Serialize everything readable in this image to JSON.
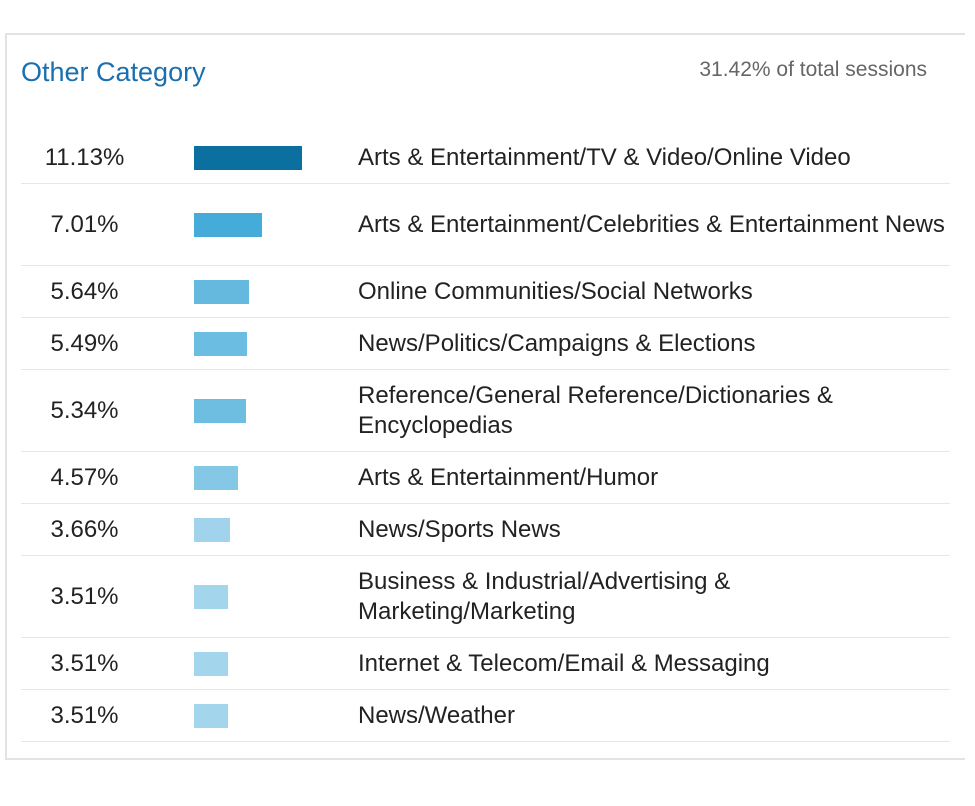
{
  "card": {
    "title": "Other Category",
    "subtitle": "31.42% of total sessions"
  },
  "chart_data": {
    "type": "bar",
    "orientation": "horizontal",
    "title": "Other Category",
    "subtitle": "31.42% of total sessions",
    "categories": [
      "Arts & Entertainment/TV & Video/Online Video",
      "Arts & Entertainment/Celebrities & Entertainment News",
      "Online Communities/Social Networks",
      "News/Politics/Campaigns & Elections",
      "Reference/General Reference/Dictionaries & Encyclopedias",
      "Arts & Entertainment/Humor",
      "News/Sports News",
      "Business & Industrial/Advertising & Marketing/Marketing",
      "Internet & Telecom/Email & Messaging",
      "News/Weather"
    ],
    "values": [
      11.13,
      7.01,
      5.64,
      5.49,
      5.34,
      4.57,
      3.66,
      3.51,
      3.51,
      3.51
    ],
    "value_labels": [
      "11.13%",
      "7.01%",
      "5.64%",
      "5.49%",
      "5.34%",
      "4.57%",
      "3.66%",
      "3.51%",
      "3.51%",
      "3.51%"
    ],
    "bar_colors": [
      "#0b6fa0",
      "#45acd9",
      "#65b9df",
      "#6bbde1",
      "#6ebee2",
      "#84c8e6",
      "#a1d4ec",
      "#a3d6ec",
      "#a3d6ec",
      "#a3d6ec"
    ],
    "xlabel": "",
    "ylabel": "",
    "grid": false,
    "legend": "none"
  },
  "colors": {
    "title": "#1a6fb0",
    "text": "#222222",
    "muted": "#666666",
    "divider": "#e6e6e6"
  }
}
